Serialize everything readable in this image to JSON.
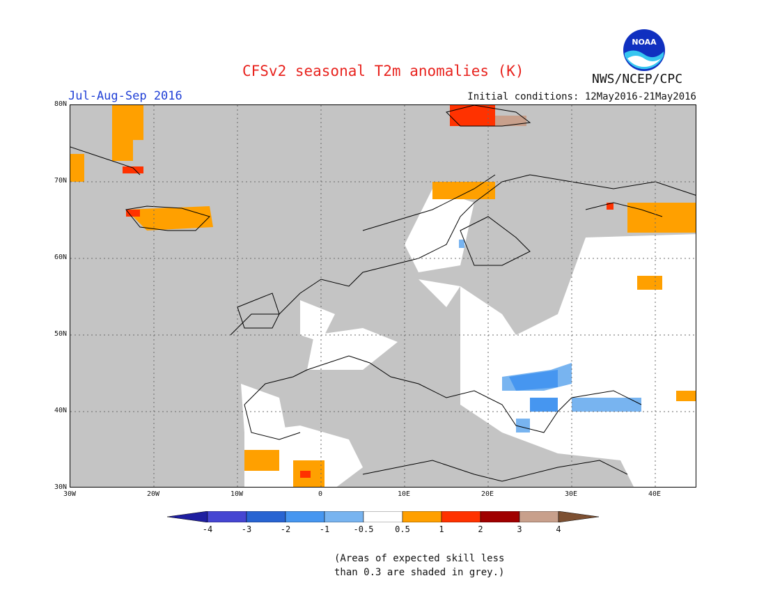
{
  "header": {
    "title": "CFSv2 seasonal T2m anomalies (K)",
    "season": "Jul-Aug-Sep 2016",
    "initial_conditions": "Initial conditions: 12May2016-21May2016",
    "agency": "NWS/NCEP/CPC",
    "logo_text": "NOAA"
  },
  "map": {
    "region": "Europe",
    "lat_labels": [
      "80N",
      "70N",
      "60N",
      "50N",
      "40N",
      "30N"
    ],
    "lon_labels": [
      "30W",
      "20W",
      "10W",
      "0",
      "10E",
      "20E",
      "30E",
      "40E"
    ],
    "colors": {
      "grey_low_skill": "#c4c4c4",
      "neutral": "#ffffff",
      "light_blue": "#78b4f0",
      "blue": "#4696f0",
      "orange": "#ffa000",
      "red_orange": "#ff3200",
      "coastline": "#000000"
    }
  },
  "legend": {
    "labels": [
      "-4",
      "-3",
      "-2",
      "-1",
      "-0.5",
      "0.5",
      "1",
      "2",
      "3",
      "4"
    ],
    "colors": [
      "#1e1ea0",
      "#4646d2",
      "#2864d2",
      "#4696f0",
      "#78b4f0",
      "#ffffff",
      "#ffa000",
      "#ff3200",
      "#a00000",
      "#c8a08c",
      "#7d5032"
    ]
  },
  "note": {
    "line1": "(Areas of expected skill less",
    "line2": "than 0.3 are shaded in grey.)"
  }
}
